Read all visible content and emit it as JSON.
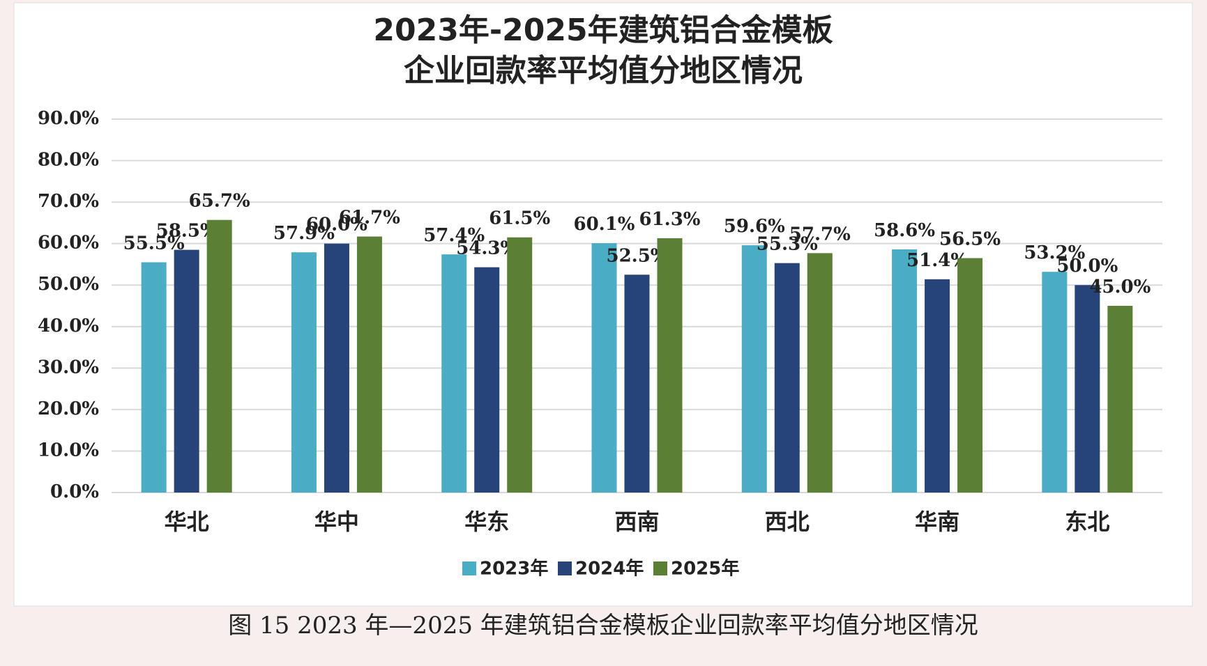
{
  "chart_data": {
    "type": "bar",
    "title": [
      "2023年-2025年建筑铝合金模板",
      "企业回款率平均值分地区情况"
    ],
    "caption": "图 15 2023 年—2025 年建筑铝合金模板企业回款率平均值分地区情况",
    "categories": [
      "华北",
      "华中",
      "华东",
      "西南",
      "西北",
      "华南",
      "东北"
    ],
    "series": [
      {
        "name": "2023年",
        "color": "#4bacc6",
        "values": [
          55.5,
          57.9,
          57.4,
          60.1,
          59.6,
          58.6,
          53.2
        ],
        "value_labels": [
          "55.5%",
          "57.9%",
          "57.4%",
          "60.1%",
          "59.6%",
          "58.6%",
          "53.2%"
        ]
      },
      {
        "name": "2024年",
        "color": "#264478",
        "values": [
          58.5,
          60.0,
          54.3,
          52.5,
          55.3,
          51.4,
          50.0
        ],
        "value_labels": [
          "58.5%",
          "60.0%",
          "54.3%",
          "52.5%",
          "55.3%",
          "51.4%",
          "50.0%"
        ]
      },
      {
        "name": "2025年",
        "color": "#5b7f35",
        "values": [
          65.7,
          61.7,
          61.5,
          61.3,
          57.7,
          56.5,
          45.0
        ],
        "value_labels": [
          "65.7%",
          "61.7%",
          "61.5%",
          "61.3%",
          "57.7%",
          "56.5%",
          "45.0%"
        ]
      }
    ],
    "ylim": [
      0,
      90
    ],
    "yticks": [
      {
        "value": 0,
        "label": "0.0%"
      },
      {
        "value": 10,
        "label": "10.0%"
      },
      {
        "value": 20,
        "label": "20.0%"
      },
      {
        "value": 30,
        "label": "30.0%"
      },
      {
        "value": 40,
        "label": "40.0%"
      },
      {
        "value": 50,
        "label": "50.0%"
      },
      {
        "value": 60,
        "label": "60.0%"
      },
      {
        "value": 70,
        "label": "70.0%"
      },
      {
        "value": 80,
        "label": "80.0%"
      },
      {
        "value": 90,
        "label": "90.0%"
      }
    ],
    "grid": true,
    "legend": "bottom"
  }
}
